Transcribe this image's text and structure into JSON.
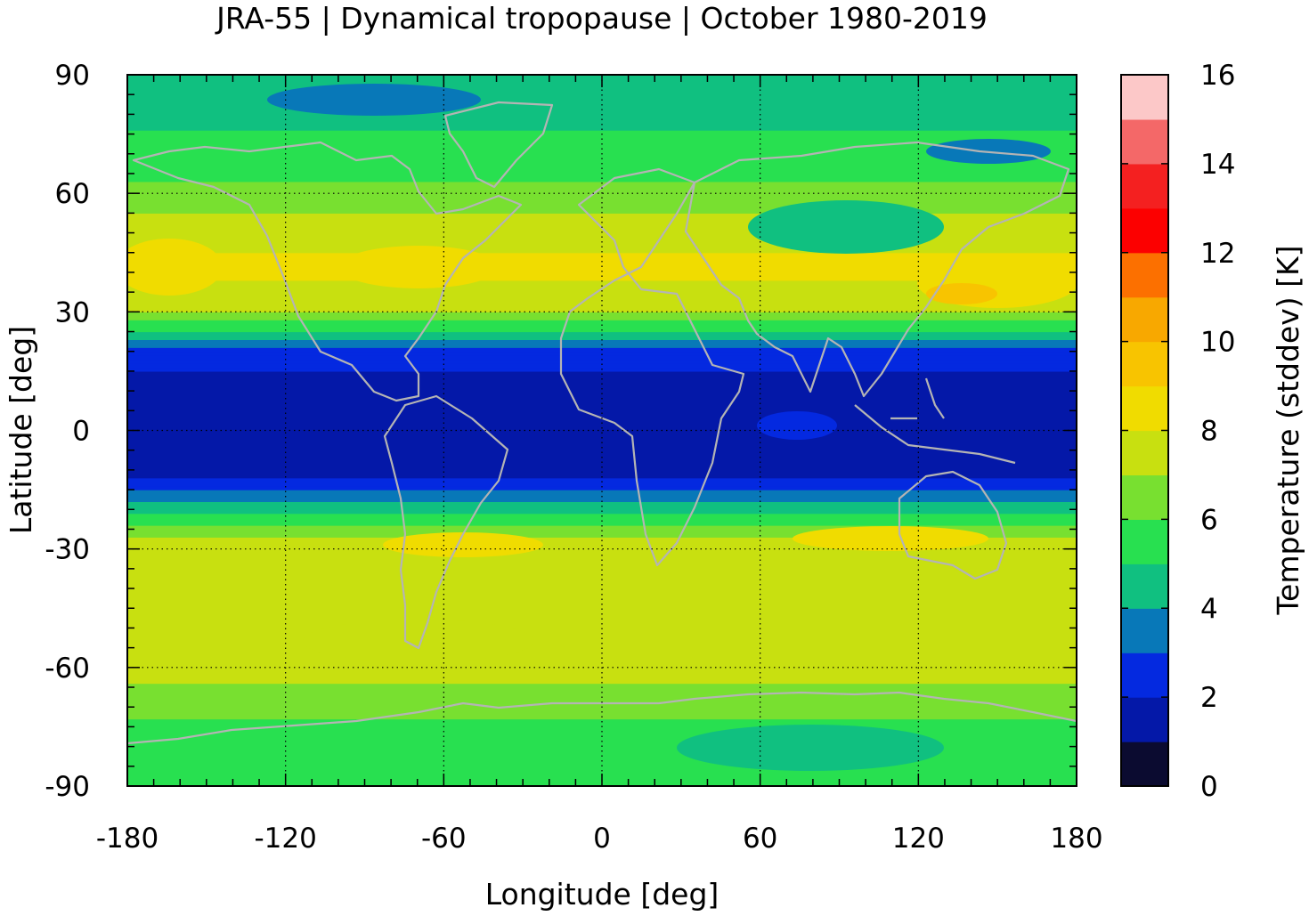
{
  "chart_data": {
    "type": "heatmap",
    "title": "JRA-55 | Dynamical tropopause | October 1980-2019",
    "xlabel": "Longitude [deg]",
    "ylabel": "Latitude [deg]",
    "xlim": [
      -180,
      180
    ],
    "ylim": [
      -90,
      90
    ],
    "x_ticks": [
      "-180",
      "-120",
      "-60",
      "0",
      "60",
      "120",
      "180"
    ],
    "y_ticks": [
      "90",
      "60",
      "30",
      "0",
      "-30",
      "-60",
      "-90"
    ],
    "grid": true,
    "colorbar": {
      "label": "Temperature (stddev) [K]",
      "range": [
        0,
        16
      ],
      "ticks": [
        "0",
        "2",
        "4",
        "6",
        "8",
        "10",
        "12",
        "14",
        "16"
      ],
      "colors": [
        "#0b0b30",
        "#0418a8",
        "#0429e0",
        "#0878b8",
        "#10c080",
        "#28e050",
        "#78e030",
        "#c8e010",
        "#f0dc00",
        "#f8c400",
        "#f8a800",
        "#fc7000",
        "#fc0000",
        "#f42020",
        "#f46868",
        "#fcc8c8"
      ]
    },
    "zonal_profile": {
      "lat": [
        -90,
        -80,
        -70,
        -60,
        -50,
        -40,
        -30,
        -20,
        -10,
        0,
        10,
        20,
        30,
        40,
        50,
        60,
        70,
        80,
        90
      ],
      "values": [
        5.4,
        5.6,
        6.2,
        7.6,
        7.6,
        7.0,
        8.0,
        4.5,
        1.5,
        1.5,
        1.5,
        2.6,
        7.0,
        8.2,
        7.8,
        6.2,
        5.5,
        4.6,
        4.4
      ]
    }
  }
}
